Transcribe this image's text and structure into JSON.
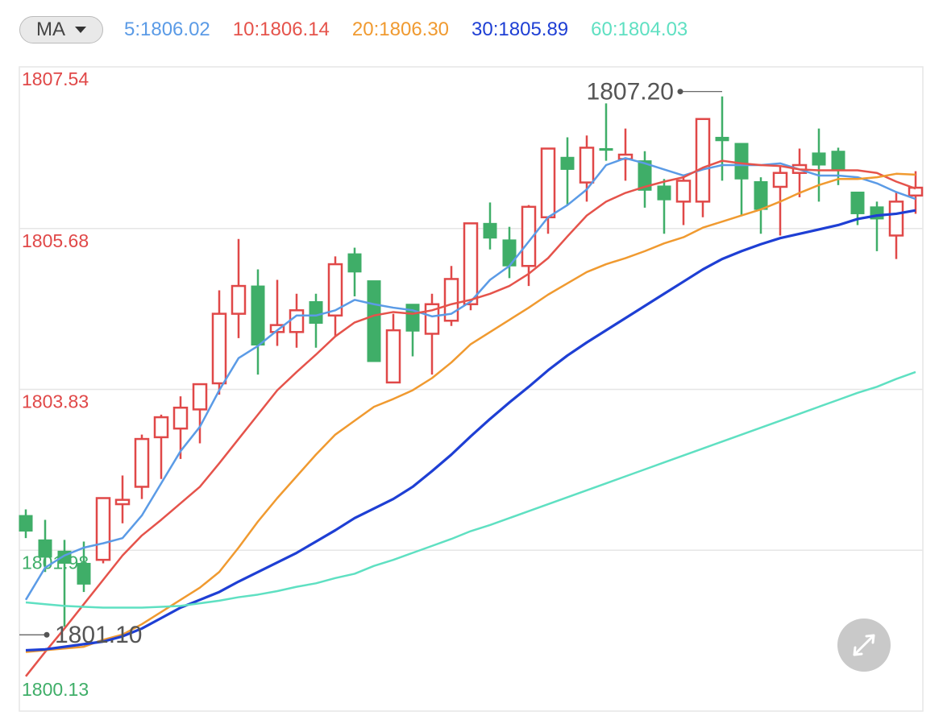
{
  "chart_data": {
    "type": "candlestick",
    "indicator_button": "MA",
    "ylim": [
      1800.13,
      1807.54
    ],
    "yticks": [
      1807.54,
      1805.68,
      1803.83,
      1801.98,
      1800.13
    ],
    "ytick_colors": [
      "#e04848",
      "#e04848",
      "#e04848",
      "#3fae68",
      "#3fae68"
    ],
    "grid": true,
    "up_color": "#e04848",
    "down_color": "#3fae68",
    "max_label": "1807.20",
    "min_label": "1801.10",
    "open": [
      1802.38,
      1802.1,
      1801.97,
      1801.83,
      1801.87,
      1802.51,
      1802.71,
      1803.28,
      1803.38,
      1803.6,
      1803.9,
      1804.7,
      1805.02,
      1804.49,
      1804.49,
      1804.84,
      1804.68,
      1805.39,
      1805.08,
      1803.91,
      1804.81,
      1804.47,
      1804.62,
      1804.81,
      1805.74,
      1805.55,
      1805.25,
      1805.81,
      1806.5,
      1806.21,
      1806.6,
      1806.48,
      1806.46,
      1806.17,
      1805.99,
      1805.99,
      1806.73,
      1806.66,
      1806.22,
      1806.16,
      1806.32,
      1806.55,
      1806.57,
      1806.1,
      1805.93,
      1805.6,
      1806.06
    ],
    "high": [
      1802.45,
      1802.33,
      1802.1,
      1802.08,
      1802.58,
      1802.84,
      1803.31,
      1803.54,
      1803.75,
      1803.9,
      1804.97,
      1805.56,
      1805.21,
      1805.09,
      1804.93,
      1804.93,
      1805.36,
      1805.46,
      1805.08,
      1804.7,
      1804.81,
      1804.93,
      1805.25,
      1805.74,
      1805.98,
      1805.7,
      1805.95,
      1806.6,
      1806.73,
      1806.75,
      1807.12,
      1806.83,
      1806.57,
      1806.25,
      1806.27,
      1806.94,
      1807.2,
      1806.66,
      1806.27,
      1806.41,
      1806.6,
      1806.83,
      1806.61,
      1806.1,
      1805.99,
      1806.1,
      1806.34
    ],
    "low": [
      1802.12,
      1801.73,
      1801.1,
      1801.5,
      1801.83,
      1802.29,
      1802.57,
      1802.8,
      1803.03,
      1803.21,
      1803.77,
      1804.42,
      1804.0,
      1804.33,
      1804.31,
      1804.31,
      1804.44,
      1804.9,
      1804.15,
      1803.91,
      1804.21,
      1804.0,
      1804.56,
      1804.74,
      1805.44,
      1805.11,
      1805.02,
      1805.62,
      1805.95,
      1805.99,
      1806.46,
      1806.23,
      1805.92,
      1805.62,
      1805.72,
      1805.81,
      1806.23,
      1805.83,
      1805.62,
      1805.6,
      1806.04,
      1805.99,
      1806.18,
      1805.72,
      1805.42,
      1805.33,
      1805.85
    ],
    "close": [
      1802.2,
      1801.9,
      1801.83,
      1801.59,
      1802.58,
      1802.56,
      1803.26,
      1803.51,
      1803.62,
      1803.89,
      1804.7,
      1805.02,
      1804.34,
      1804.57,
      1804.74,
      1804.59,
      1805.27,
      1805.18,
      1804.15,
      1804.51,
      1804.5,
      1804.81,
      1805.1,
      1805.74,
      1805.57,
      1805.25,
      1805.93,
      1806.6,
      1806.36,
      1806.61,
      1806.58,
      1806.53,
      1806.12,
      1806.01,
      1806.23,
      1806.94,
      1806.69,
      1806.25,
      1805.9,
      1806.32,
      1806.41,
      1806.41,
      1806.35,
      1805.85,
      1805.79,
      1805.99,
      1806.15
    ],
    "series": [
      {
        "name": "5:1806.02",
        "color": "#5b9be6",
        "values": [
          1801.41,
          1801.78,
          1801.92,
          1802.01,
          1802.06,
          1802.12,
          1802.38,
          1802.75,
          1803.12,
          1803.4,
          1803.82,
          1804.19,
          1804.33,
          1804.51,
          1804.68,
          1804.68,
          1804.74,
          1804.86,
          1804.81,
          1804.77,
          1804.74,
          1804.67,
          1804.7,
          1804.84,
          1805.09,
          1805.25,
          1805.53,
          1805.81,
          1805.95,
          1806.13,
          1806.41,
          1806.49,
          1806.43,
          1806.36,
          1806.29,
          1806.36,
          1806.41,
          1806.41,
          1806.41,
          1806.43,
          1806.36,
          1806.29,
          1806.29,
          1806.27,
          1806.2,
          1806.1,
          1806.02
        ]
      },
      {
        "name": "10:1806.14",
        "color": "#e5534b",
        "values": [
          1800.53,
          1800.81,
          1801.08,
          1801.36,
          1801.64,
          1801.92,
          1802.15,
          1802.33,
          1802.52,
          1802.71,
          1802.98,
          1803.26,
          1803.54,
          1803.82,
          1804.03,
          1804.23,
          1804.44,
          1804.6,
          1804.68,
          1804.72,
          1804.7,
          1804.74,
          1804.81,
          1804.86,
          1804.93,
          1805.02,
          1805.16,
          1805.34,
          1805.59,
          1805.83,
          1805.99,
          1806.09,
          1806.16,
          1806.22,
          1806.27,
          1806.38,
          1806.46,
          1806.43,
          1806.41,
          1806.4,
          1806.36,
          1806.35,
          1806.35,
          1806.35,
          1806.32,
          1806.22,
          1806.14
        ]
      },
      {
        "name": "20:1806.30",
        "color": "#f09a30",
        "values": [
          1800.81,
          1800.83,
          1800.85,
          1800.87,
          1800.95,
          1801.01,
          1801.13,
          1801.27,
          1801.41,
          1801.55,
          1801.73,
          1802.01,
          1802.31,
          1802.58,
          1802.83,
          1803.08,
          1803.31,
          1803.47,
          1803.63,
          1803.72,
          1803.82,
          1803.96,
          1804.14,
          1804.35,
          1804.49,
          1804.63,
          1804.77,
          1804.92,
          1805.05,
          1805.18,
          1805.27,
          1805.34,
          1805.42,
          1805.51,
          1805.58,
          1805.69,
          1805.76,
          1805.83,
          1805.9,
          1805.99,
          1806.09,
          1806.18,
          1806.25,
          1806.25,
          1806.27,
          1806.31,
          1806.3
        ]
      },
      {
        "name": "30:1805.89",
        "color": "#1e3fd4",
        "values": [
          1800.83,
          1800.84,
          1800.87,
          1800.9,
          1800.93,
          1800.99,
          1801.08,
          1801.2,
          1801.32,
          1801.41,
          1801.5,
          1801.62,
          1801.73,
          1801.84,
          1801.95,
          1802.08,
          1802.21,
          1802.35,
          1802.46,
          1802.57,
          1802.71,
          1802.89,
          1803.08,
          1803.29,
          1803.49,
          1803.68,
          1803.86,
          1804.05,
          1804.22,
          1804.37,
          1804.51,
          1804.65,
          1804.79,
          1804.93,
          1805.07,
          1805.21,
          1805.33,
          1805.42,
          1805.5,
          1805.57,
          1805.62,
          1805.67,
          1805.72,
          1805.79,
          1805.83,
          1805.85,
          1805.89
        ]
      },
      {
        "name": "60:1804.03",
        "color": "#5fe0c2",
        "values": [
          1801.38,
          1801.36,
          1801.34,
          1801.33,
          1801.32,
          1801.32,
          1801.32,
          1801.33,
          1801.34,
          1801.37,
          1801.4,
          1801.44,
          1801.47,
          1801.51,
          1801.56,
          1801.6,
          1801.66,
          1801.71,
          1801.8,
          1801.87,
          1801.95,
          1802.03,
          1802.11,
          1802.2,
          1802.27,
          1802.35,
          1802.43,
          1802.51,
          1802.59,
          1802.67,
          1802.75,
          1802.83,
          1802.91,
          1802.99,
          1803.07,
          1803.15,
          1803.23,
          1803.31,
          1803.39,
          1803.47,
          1803.55,
          1803.63,
          1803.71,
          1803.79,
          1803.86,
          1803.95,
          1804.03
        ]
      }
    ]
  }
}
